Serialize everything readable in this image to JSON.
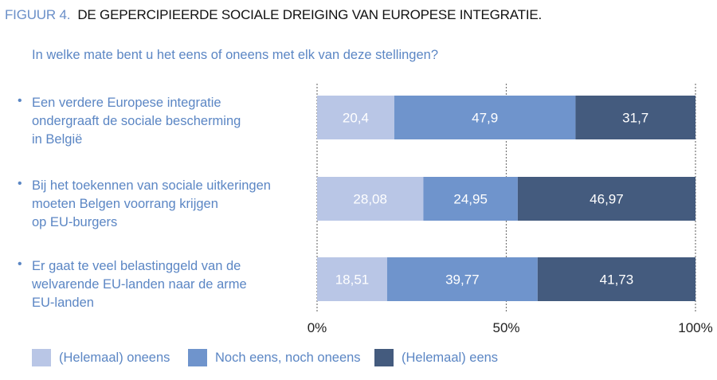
{
  "header": {
    "figure_label": "FIGUUR 4.",
    "title": "DE GEPERCIPIEERDE SOCIALE DREIGING VAN EUROPESE INTEGRATIE."
  },
  "chart_data": {
    "type": "bar",
    "orientation": "horizontal-stacked-100",
    "subtitle": "In welke mate bent u het eens of oneens met elk van deze stellingen?",
    "categories": [
      "Een verdere Europese integratie ondergraaft de sociale bescherming in België",
      "Bij het toekennen van sociale uitkeringen moeten Belgen voorrang krijgen op EU-burgers",
      "Er gaat te veel belastinggeld van de welvarende EU-landen naar de arme EU-landen"
    ],
    "category_lines": [
      [
        "Een verdere Europese integratie",
        "ondergraaft de sociale bescherming",
        "in België"
      ],
      [
        "Bij het toekennen van sociale uitkeringen",
        "moeten Belgen voorrang krijgen",
        "op EU-burgers"
      ],
      [
        "Er gaat te veel belastinggeld van de",
        "welvarende EU-landen naar de arme",
        "EU-landen"
      ]
    ],
    "series": [
      {
        "name": "(Helemaal) oneens",
        "color": "#b9c6e6",
        "values": [
          20.4,
          28.08,
          18.51
        ],
        "labels": [
          "20,4",
          "28,08",
          "18,51"
        ]
      },
      {
        "name": "Noch eens, noch oneens",
        "color": "#6f94cc",
        "values": [
          47.9,
          24.95,
          39.77
        ],
        "labels": [
          "47,9",
          "24,95",
          "39,77"
        ]
      },
      {
        "name": "(Helemaal) eens",
        "color": "#445b7e",
        "values": [
          31.7,
          46.97,
          41.73
        ],
        "labels": [
          "31,7",
          "46,97",
          "41,73"
        ]
      }
    ],
    "xlim": [
      0,
      100
    ],
    "xticks": [
      0,
      50,
      100
    ],
    "xtick_labels": [
      "0%",
      "50%",
      "100%"
    ],
    "grid": "dotted vertical at ticks",
    "legend": "bottom"
  }
}
